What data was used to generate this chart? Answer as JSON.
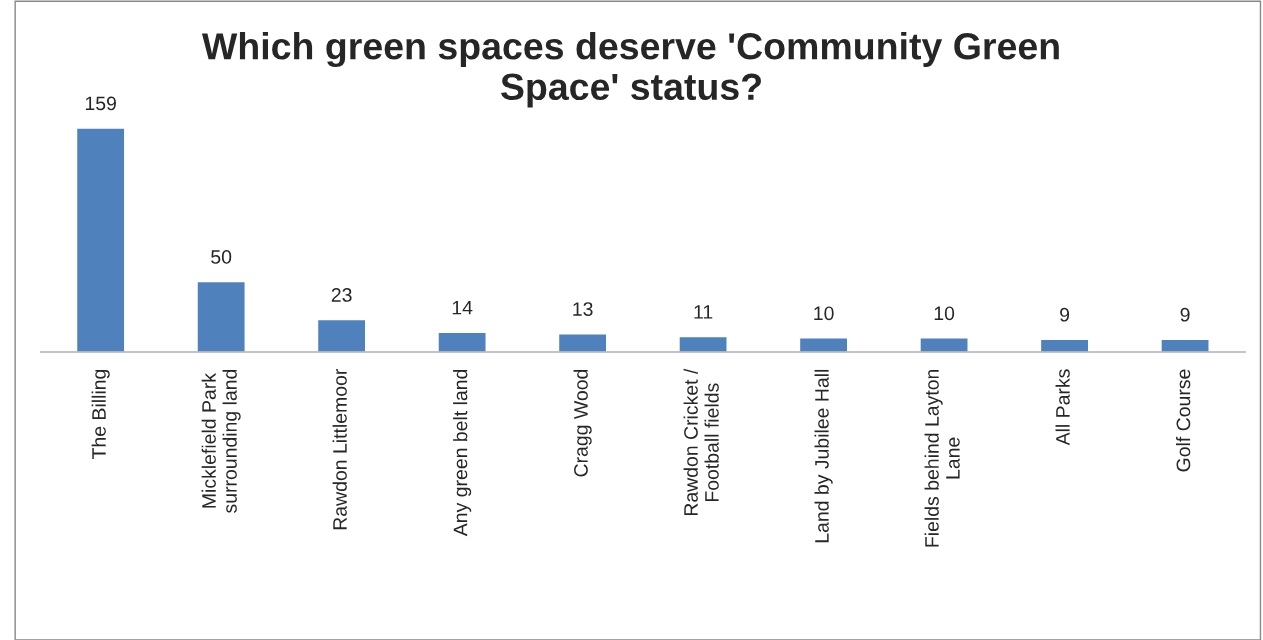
{
  "chart_data": {
    "type": "bar",
    "title": "Which green spaces deserve 'Community Green Space' status?",
    "categories": [
      "The Billing",
      "Micklefield Park surrounding land",
      "Rawdon Littlemoor",
      "Any green belt land",
      "Cragg Wood",
      "Rawdon Cricket / Football fields",
      "Land by Jubilee Hall",
      "Fields behind Layton Lane",
      "All Parks",
      "Golf Course"
    ],
    "values": [
      159,
      50,
      23,
      14,
      13,
      11,
      10,
      10,
      9,
      9
    ],
    "color": "#4f81bd",
    "data_labels": true,
    "grid": false,
    "legend": false
  }
}
